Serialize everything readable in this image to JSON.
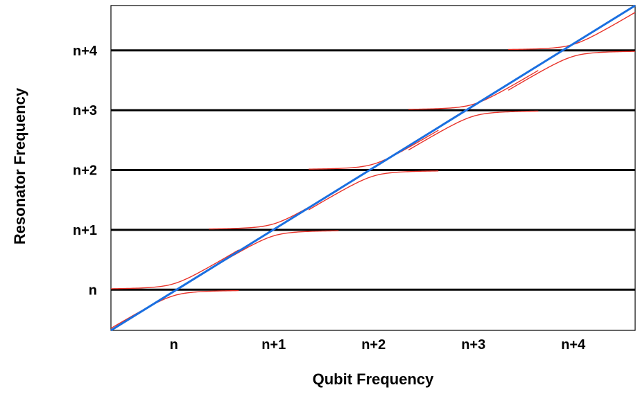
{
  "chart_data": {
    "type": "line",
    "title": "",
    "xlabel": "Qubit Frequency",
    "ylabel": "Resonator Frequency",
    "x_ticks": [
      {
        "value": 0,
        "label": "n"
      },
      {
        "value": 1,
        "label": "n+1"
      },
      {
        "value": 2,
        "label": "n+2"
      },
      {
        "value": 3,
        "label": "n+3"
      },
      {
        "value": 4,
        "label": "n+4"
      }
    ],
    "y_ticks": [
      {
        "value": 0,
        "label": "n"
      },
      {
        "value": 1,
        "label": "n+1"
      },
      {
        "value": 2,
        "label": "n+2"
      },
      {
        "value": 3,
        "label": "n+3"
      },
      {
        "value": 4,
        "label": "n+4"
      }
    ],
    "xlim": [
      -0.63,
      4.62
    ],
    "ylim": [
      -0.68,
      4.75
    ],
    "grid": false,
    "legend": "none",
    "resonator_levels": [
      0,
      1,
      2,
      3,
      4
    ],
    "coupling_g": 0.1,
    "series": [
      {
        "kind": "resonator levels (uncoupled)",
        "color": "#000000",
        "x": [
          -0.63,
          4.62
        ]
      },
      {
        "kind": "qubit line (uncoupled)",
        "color": "#1a6fe0",
        "x": [
          -0.63,
          4.62
        ],
        "y": [
          -0.68,
          4.75
        ]
      },
      {
        "kind": "dressed states (avoided crossings)",
        "color": "#e8332a"
      }
    ]
  }
}
